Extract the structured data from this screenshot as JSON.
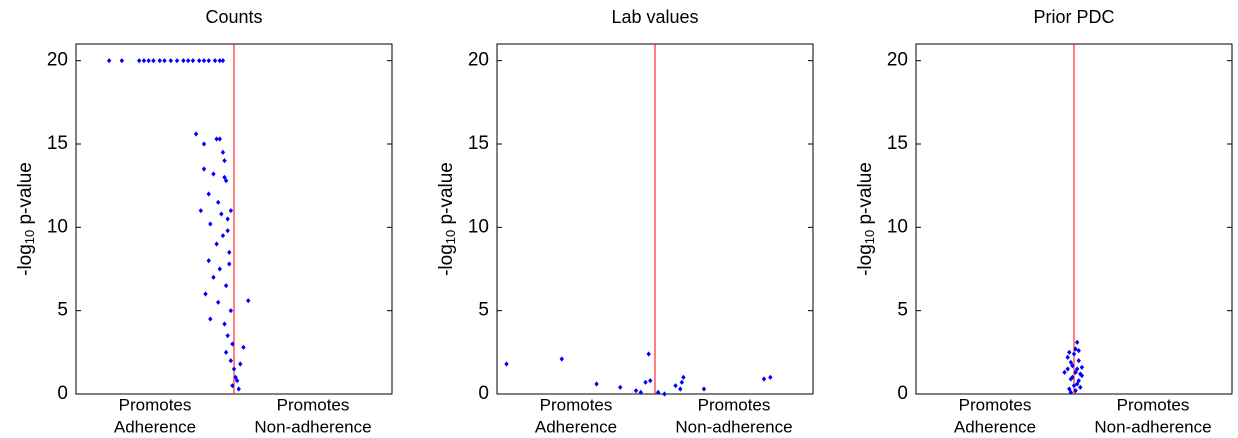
{
  "chart_data": [
    {
      "type": "scatter",
      "title": "Counts",
      "ylabel": {
        "pre": "-log",
        "sub": "10",
        "post": " p-value"
      },
      "xlabels": [
        [
          "Promotes",
          "Adherence"
        ],
        [
          "Promotes",
          "Non-adherence"
        ]
      ],
      "x": [
        -0.79,
        -0.71,
        -0.6,
        -0.57,
        -0.54,
        -0.51,
        -0.47,
        -0.44,
        -0.4,
        -0.36,
        -0.32,
        -0.29,
        -0.26,
        -0.22,
        -0.19,
        -0.16,
        -0.12,
        -0.09,
        -0.07,
        -0.24,
        -0.19,
        -0.11,
        -0.09,
        -0.07,
        -0.06,
        -0.19,
        -0.13,
        -0.05,
        -0.16,
        -0.1,
        -0.21,
        -0.04,
        -0.15,
        -0.07,
        -0.11,
        -0.03,
        -0.16,
        -0.09,
        -0.13,
        -0.05,
        -0.18,
        -0.1,
        -0.02,
        -0.15,
        -0.06,
        -0.04,
        -0.01,
        -0.05,
        -0.02,
        0,
        0.01,
        -0.01,
        0.03,
        0.06,
        0.09,
        0.04,
        0.02,
        -0.03,
        -0.04,
        -0.02,
        -0.06,
        -0.08
      ],
      "y": [
        20,
        20,
        20,
        20,
        20,
        20,
        20,
        20,
        20,
        20,
        20,
        20,
        20,
        20,
        20,
        20,
        20,
        20,
        20,
        15.6,
        15,
        15.3,
        15.3,
        14.5,
        14,
        13.5,
        13.2,
        12.8,
        12,
        11.5,
        11,
        10.5,
        10.2,
        9.5,
        9,
        8.5,
        8,
        7.5,
        7,
        6.5,
        6,
        5.5,
        5,
        4.5,
        4.2,
        3.5,
        3,
        2.5,
        2,
        1.5,
        1,
        0.5,
        0.3,
        2.8,
        5.6,
        1.8,
        0.8,
        7.8,
        9.8,
        11,
        13,
        10.8
      ],
      "color": "#0000ff",
      "xlim": [
        -1,
        1
      ],
      "ylim": [
        0,
        21
      ],
      "yticks": [
        0,
        5,
        10,
        15,
        20
      ],
      "vline": 0,
      "vline_color": "#ff0000"
    },
    {
      "type": "scatter",
      "title": "Lab values",
      "ylabel": {
        "pre": "-log",
        "sub": "10",
        "post": " p-value"
      },
      "xlabels": [
        [
          "Promotes",
          "Adherence"
        ],
        [
          "Promotes",
          "Non-adherence"
        ]
      ],
      "x": [
        -0.94,
        -0.59,
        -0.37,
        -0.22,
        -0.09,
        -0.06,
        -0.04,
        -0.03,
        0.02,
        0.06,
        0.13,
        0.16,
        0.18,
        0.17,
        0.31,
        0.69,
        0.73,
        -0.12
      ],
      "y": [
        1.8,
        2.1,
        0.6,
        0.4,
        0.1,
        0.7,
        2.4,
        0.8,
        0.1,
        0,
        0.5,
        0.3,
        1,
        0.7,
        0.3,
        0.9,
        1,
        0.2
      ],
      "color": "#0000ff",
      "xlim": [
        -1,
        1
      ],
      "ylim": [
        0,
        21
      ],
      "yticks": [
        0,
        5,
        10,
        15,
        20
      ],
      "vline": 0,
      "vline_color": "#ff0000"
    },
    {
      "type": "scatter",
      "title": "Prior PDC",
      "ylabel": {
        "pre": "-log",
        "sub": "10",
        "post": " p-value"
      },
      "xlabels": [
        [
          "Promotes",
          "Adherence"
        ],
        [
          "Promotes",
          "Non-adherence"
        ]
      ],
      "x": [
        -0.06,
        -0.04,
        -0.03,
        -0.02,
        -0.01,
        0,
        0.01,
        0.02,
        0.02,
        0.03,
        0.04,
        0.05,
        -0.03,
        -0.02,
        0.01,
        0.03,
        -0.01,
        0,
        0.02,
        -0.04,
        0.04,
        0.05,
        -0.02,
        0.01,
        0.03
      ],
      "y": [
        1.3,
        2.2,
        2.5,
        1.9,
        1,
        0.5,
        2.7,
        3.1,
        1.5,
        0.8,
        1.2,
        1.6,
        0.3,
        0.9,
        0.2,
        2,
        1.7,
        2.4,
        0.6,
        1.5,
        0.4,
        1.1,
        0.1,
        1.3,
        2.6
      ],
      "color": "#0000ff",
      "xlim": [
        -1,
        1
      ],
      "ylim": [
        0,
        21
      ],
      "yticks": [
        0,
        5,
        10,
        15,
        20
      ],
      "vline": 0,
      "vline_color": "#ff0000"
    }
  ]
}
